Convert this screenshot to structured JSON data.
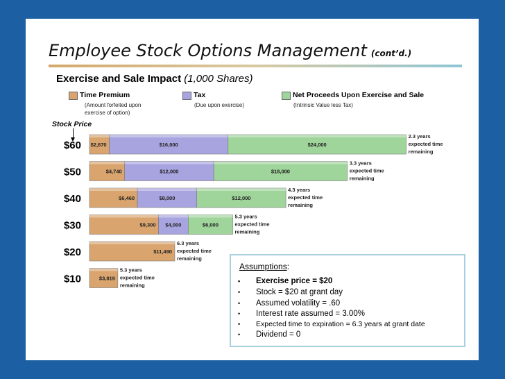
{
  "slide": {
    "title": "Employee Stock Options Management",
    "title_suffix": "(cont’d.)",
    "subtitle_bold": "Exercise and Sale Impact",
    "subtitle_italic": "(1,000 Shares)"
  },
  "legend": [
    {
      "name": "Time Premium",
      "desc": "(Amount forfeited upon exercise of option)",
      "color": "#d9a46e"
    },
    {
      "name": "Tax",
      "desc": "(Due upon exercise)",
      "color": "#a8a4e0"
    },
    {
      "name": "Net Proceeds Upon Exercise and Sale",
      "desc": "(Intrinsic Value less Tax)",
      "color": "#9fd49b"
    }
  ],
  "stock_price_label": "Stock Price",
  "chart_data": {
    "type": "bar",
    "stacked": true,
    "orientation": "horizontal",
    "categories": [
      "$60",
      "$50",
      "$40",
      "$30",
      "$20",
      "$10"
    ],
    "series": [
      {
        "name": "Time Premium",
        "values": [
          2670,
          4740,
          6460,
          9300,
          11490,
          3819
        ],
        "labels": [
          "$2,670",
          "$4,740",
          "$6,460",
          "$9,300",
          "$11,490",
          "$3,819"
        ]
      },
      {
        "name": "Tax",
        "values": [
          16000,
          12000,
          8000,
          4000,
          0,
          0
        ],
        "labels": [
          "$16,000",
          "$12,000",
          "$8,000",
          "$4,000",
          "",
          ""
        ]
      },
      {
        "name": "Net Proceeds Upon Exercise and Sale",
        "values": [
          24000,
          18000,
          12000,
          6000,
          0,
          0
        ],
        "labels": [
          "$24,000",
          "$18,000",
          "$12,000",
          "$6,000",
          "",
          ""
        ]
      }
    ],
    "annotations": [
      [
        "2.3 years",
        "expected time",
        "remaining"
      ],
      [
        "3.3 years",
        "expected time",
        "remaining"
      ],
      [
        "4.3 years",
        "expected time",
        "remaining"
      ],
      [
        "5.3 years",
        "expected time",
        "remaining"
      ],
      [
        "6.3 years",
        "expected time",
        "remaining"
      ],
      [
        "5.3 years",
        "expected time",
        "remaining"
      ]
    ],
    "colors": [
      "#d9a46e",
      "#a8a4e0",
      "#9fd49b"
    ]
  },
  "assumptions": {
    "title": "Assumptions",
    "bullet": "•",
    "items": [
      "Exercise price = $20",
      "Stock = $20 at grant day",
      "Assumed volatility = .60",
      "Interest rate assumed = 3.00%",
      "Expected time to expiration = 6.3 years at grant date",
      "Dividend = 0"
    ]
  }
}
